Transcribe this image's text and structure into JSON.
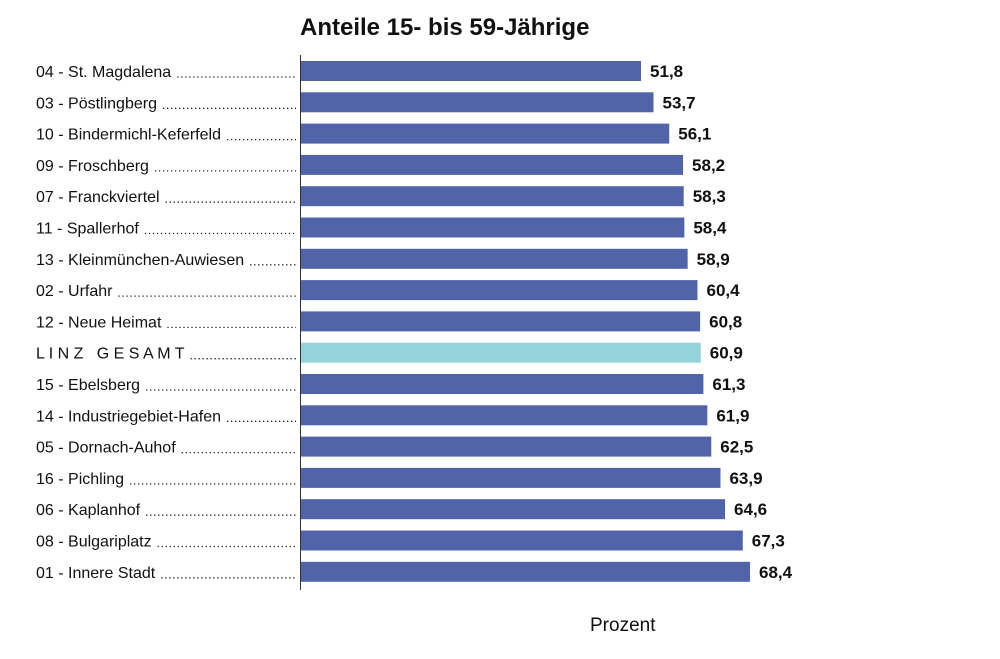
{
  "chart_data": {
    "type": "bar",
    "orientation": "horizontal",
    "title": "Anteile 15- bis 59-Jährige",
    "xlabel": "Prozent",
    "ylabel": "",
    "xlim": [
      0,
      100
    ],
    "grid": false,
    "categories": [
      "04 - St. Magdalena",
      "03 - Pöstlingberg",
      "10 - Bindermichl-Keferfeld",
      "09 - Froschberg",
      "07 - Franckviertel",
      "11 - Spallerhof",
      "13 - Kleinmünchen-Auwiesen",
      "02 - Urfahr",
      "12 - Neue Heimat",
      "L I N Z   G E S A M T",
      "15 - Ebelsberg",
      "14 - Industriegebiet-Hafen",
      "05 - Dornach-Auhof",
      "16 - Pichling",
      "06 - Kaplanhof",
      "08 - Bulgariplatz",
      "01 - Innere Stadt"
    ],
    "values": [
      51.8,
      53.7,
      56.1,
      58.2,
      58.3,
      58.4,
      58.9,
      60.4,
      60.8,
      60.9,
      61.3,
      61.9,
      62.5,
      63.9,
      64.6,
      67.3,
      68.4
    ],
    "value_labels": [
      "51,8",
      "53,7",
      "56,1",
      "58,2",
      "58,3",
      "58,4",
      "58,9",
      "60,4",
      "60,8",
      "60,9",
      "61,3",
      "61,9",
      "62,5",
      "63,9",
      "64,6",
      "67,3",
      "68,4"
    ],
    "highlight_index": 9,
    "colors": {
      "bar": "#5264a9",
      "highlight": "#95d4dc",
      "axis": "#333333"
    }
  }
}
